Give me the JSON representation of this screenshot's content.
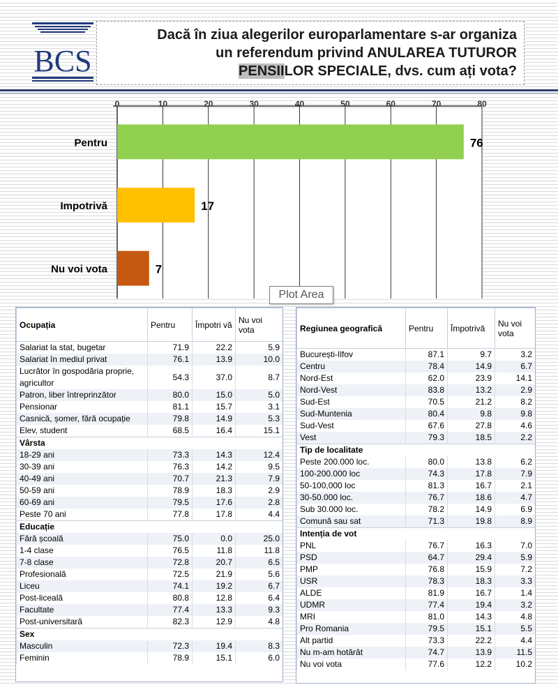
{
  "logo": {
    "text": "BCS"
  },
  "title": {
    "line1": "Dacă în ziua alegerilor europarlamentare s-ar organiza",
    "line2": "un referendum privind ANULAREA TUTUROR",
    "line3_a": "PENSII",
    "line3_b": "LOR SPECIALE, dvs. cum ați vota?"
  },
  "tooltip": "Plot Area",
  "chart_data": {
    "type": "bar",
    "orientation": "horizontal",
    "categories": [
      "Pentru",
      "Impotrivă",
      "Nu voi vota"
    ],
    "values": [
      76,
      17,
      7
    ],
    "colors": [
      "#92d050",
      "#ffc000",
      "#c65911"
    ],
    "xlim": [
      0,
      80
    ],
    "xticks": [
      0,
      10,
      20,
      30,
      40,
      50,
      60,
      70,
      80
    ],
    "grid": true,
    "legend": "none"
  },
  "left_table": {
    "headers": {
      "label": "Ocupația",
      "pentru": "Pentru",
      "impotriva": "Împotri vă",
      "nu_voi": "Nu voi vota"
    },
    "rows": [
      {
        "type": "row",
        "label": "Salariat la stat, bugetar",
        "v": [
          "71.9",
          "22.2",
          "5.9"
        ]
      },
      {
        "type": "row",
        "label": "Salariat în mediul privat",
        "v": [
          "76.1",
          "13.9",
          "10.0"
        ]
      },
      {
        "type": "row",
        "label": "Lucrător în gospodăria proprie, agricultor",
        "v": [
          "54.3",
          "37.0",
          "8.7"
        ]
      },
      {
        "type": "row",
        "label": "Patron, liber întreprinzător",
        "v": [
          "80.0",
          "15.0",
          "5.0"
        ]
      },
      {
        "type": "row",
        "label": "Pensionar",
        "v": [
          "81.1",
          "15.7",
          "3.1"
        ]
      },
      {
        "type": "row",
        "label": "Casnică, șomer, fără ocupație",
        "v": [
          "79.8",
          "14.9",
          "5.3"
        ]
      },
      {
        "type": "row",
        "label": "Elev, student",
        "v": [
          "68.5",
          "16.4",
          "15.1"
        ]
      },
      {
        "type": "section",
        "label": "Vârsta"
      },
      {
        "type": "row",
        "label": "18-29 ani",
        "v": [
          "73.3",
          "14.3",
          "12.4"
        ]
      },
      {
        "type": "row",
        "label": "30-39 ani",
        "v": [
          "76.3",
          "14.2",
          "9.5"
        ]
      },
      {
        "type": "row",
        "label": "40-49 ani",
        "v": [
          "70.7",
          "21.3",
          "7.9"
        ]
      },
      {
        "type": "row",
        "label": "50-59 ani",
        "v": [
          "78.9",
          "18.3",
          "2.9"
        ]
      },
      {
        "type": "row",
        "label": "60-69 ani",
        "v": [
          "79.5",
          "17.6",
          "2.8"
        ]
      },
      {
        "type": "row",
        "label": "Peste 70 ani",
        "v": [
          "77.8",
          "17.8",
          "4.4"
        ]
      },
      {
        "type": "section",
        "label": "Educație"
      },
      {
        "type": "row",
        "label": "Fără școală",
        "v": [
          "75.0",
          "0.0",
          "25.0"
        ]
      },
      {
        "type": "row",
        "label": "1-4 clase",
        "v": [
          "76.5",
          "11.8",
          "11.8"
        ]
      },
      {
        "type": "row",
        "label": "7-8 clase",
        "v": [
          "72.8",
          "20.7",
          "6.5"
        ]
      },
      {
        "type": "row",
        "label": "Profesională",
        "v": [
          "72.5",
          "21.9",
          "5.6"
        ]
      },
      {
        "type": "row",
        "label": "Liceu",
        "v": [
          "74.1",
          "19.2",
          "6.7"
        ]
      },
      {
        "type": "row",
        "label": "Post-liceală",
        "v": [
          "80.8",
          "12.8",
          "6.4"
        ]
      },
      {
        "type": "row",
        "label": "Facultate",
        "v": [
          "77.4",
          "13.3",
          "9.3"
        ]
      },
      {
        "type": "row",
        "label": "Post-universitară",
        "v": [
          "82.3",
          "12.9",
          "4.8"
        ]
      },
      {
        "type": "section",
        "label": "Sex"
      },
      {
        "type": "row",
        "label": "Masculin",
        "v": [
          "72.3",
          "19.4",
          "8.3"
        ]
      },
      {
        "type": "row",
        "label": "Feminin",
        "v": [
          "78.9",
          "15.1",
          "6.0"
        ]
      }
    ]
  },
  "right_table": {
    "headers": {
      "label": "Regiunea geografică",
      "pentru": "Pentru",
      "impotriva": "Împotrivă",
      "nu_voi": "Nu voi vota"
    },
    "rows": [
      {
        "type": "row",
        "label": "București-Ilfov",
        "v": [
          "87.1",
          "9.7",
          "3.2"
        ]
      },
      {
        "type": "row",
        "label": "Centru",
        "v": [
          "78.4",
          "14.9",
          "6.7"
        ]
      },
      {
        "type": "row",
        "label": "Nord-Est",
        "v": [
          "62.0",
          "23.9",
          "14.1"
        ]
      },
      {
        "type": "row",
        "label": "Nord-Vest",
        "v": [
          "83.8",
          "13.2",
          "2.9"
        ]
      },
      {
        "type": "row",
        "label": "Sud-Est",
        "v": [
          "70.5",
          "21.2",
          "8.2"
        ]
      },
      {
        "type": "row",
        "label": "Sud-Muntenia",
        "v": [
          "80.4",
          "9.8",
          "9.8"
        ]
      },
      {
        "type": "row",
        "label": "Sud-Vest",
        "v": [
          "67.6",
          "27.8",
          "4.6"
        ]
      },
      {
        "type": "row",
        "label": "Vest",
        "v": [
          "79.3",
          "18.5",
          "2.2"
        ]
      },
      {
        "type": "section",
        "label": "Tip de localitate"
      },
      {
        "type": "row",
        "label": "Peste 200.000 loc.",
        "v": [
          "80.0",
          "13.8",
          "6.2"
        ]
      },
      {
        "type": "row",
        "label": "100-200.000 loc",
        "v": [
          "74.3",
          "17.8",
          "7.9"
        ]
      },
      {
        "type": "row",
        "label": "50-100,000 loc",
        "v": [
          "81.3",
          "16.7",
          "2.1"
        ]
      },
      {
        "type": "row",
        "label": "30-50.000 loc.",
        "v": [
          "76.7",
          "18.6",
          "4.7"
        ]
      },
      {
        "type": "row",
        "label": "Sub 30.000 loc.",
        "v": [
          "78.2",
          "14.9",
          "6.9"
        ]
      },
      {
        "type": "row",
        "label": "Comună sau sat",
        "v": [
          "71.3",
          "19.8",
          "8.9"
        ]
      },
      {
        "type": "section",
        "label": "Intenția de vot"
      },
      {
        "type": "row",
        "label": "PNL",
        "v": [
          "76.7",
          "16.3",
          "7.0"
        ]
      },
      {
        "type": "row",
        "label": "PSD",
        "v": [
          "64.7",
          "29.4",
          "5.9"
        ]
      },
      {
        "type": "row",
        "label": "PMP",
        "v": [
          "76.8",
          "15.9",
          "7.2"
        ]
      },
      {
        "type": "row",
        "label": "USR",
        "v": [
          "78.3",
          "18.3",
          "3.3"
        ]
      },
      {
        "type": "row",
        "label": "ALDE",
        "v": [
          "81.9",
          "16.7",
          "1.4"
        ]
      },
      {
        "type": "row",
        "label": "UDMR",
        "v": [
          "77.4",
          "19.4",
          "3.2"
        ]
      },
      {
        "type": "row",
        "label": "MRI",
        "v": [
          "81.0",
          "14.3",
          "4.8"
        ]
      },
      {
        "type": "row",
        "label": "Pro Romania",
        "v": [
          "79.5",
          "15.1",
          "5.5"
        ]
      },
      {
        "type": "row",
        "label": "Alt partid",
        "v": [
          "73.3",
          "22.2",
          "4.4"
        ]
      },
      {
        "type": "row",
        "label": "Nu m-am hotărât",
        "v": [
          "74.7",
          "13.9",
          "11.5"
        ]
      },
      {
        "type": "row",
        "label": "Nu voi vota",
        "v": [
          "77.6",
          "12.2",
          "10.2"
        ]
      }
    ]
  }
}
